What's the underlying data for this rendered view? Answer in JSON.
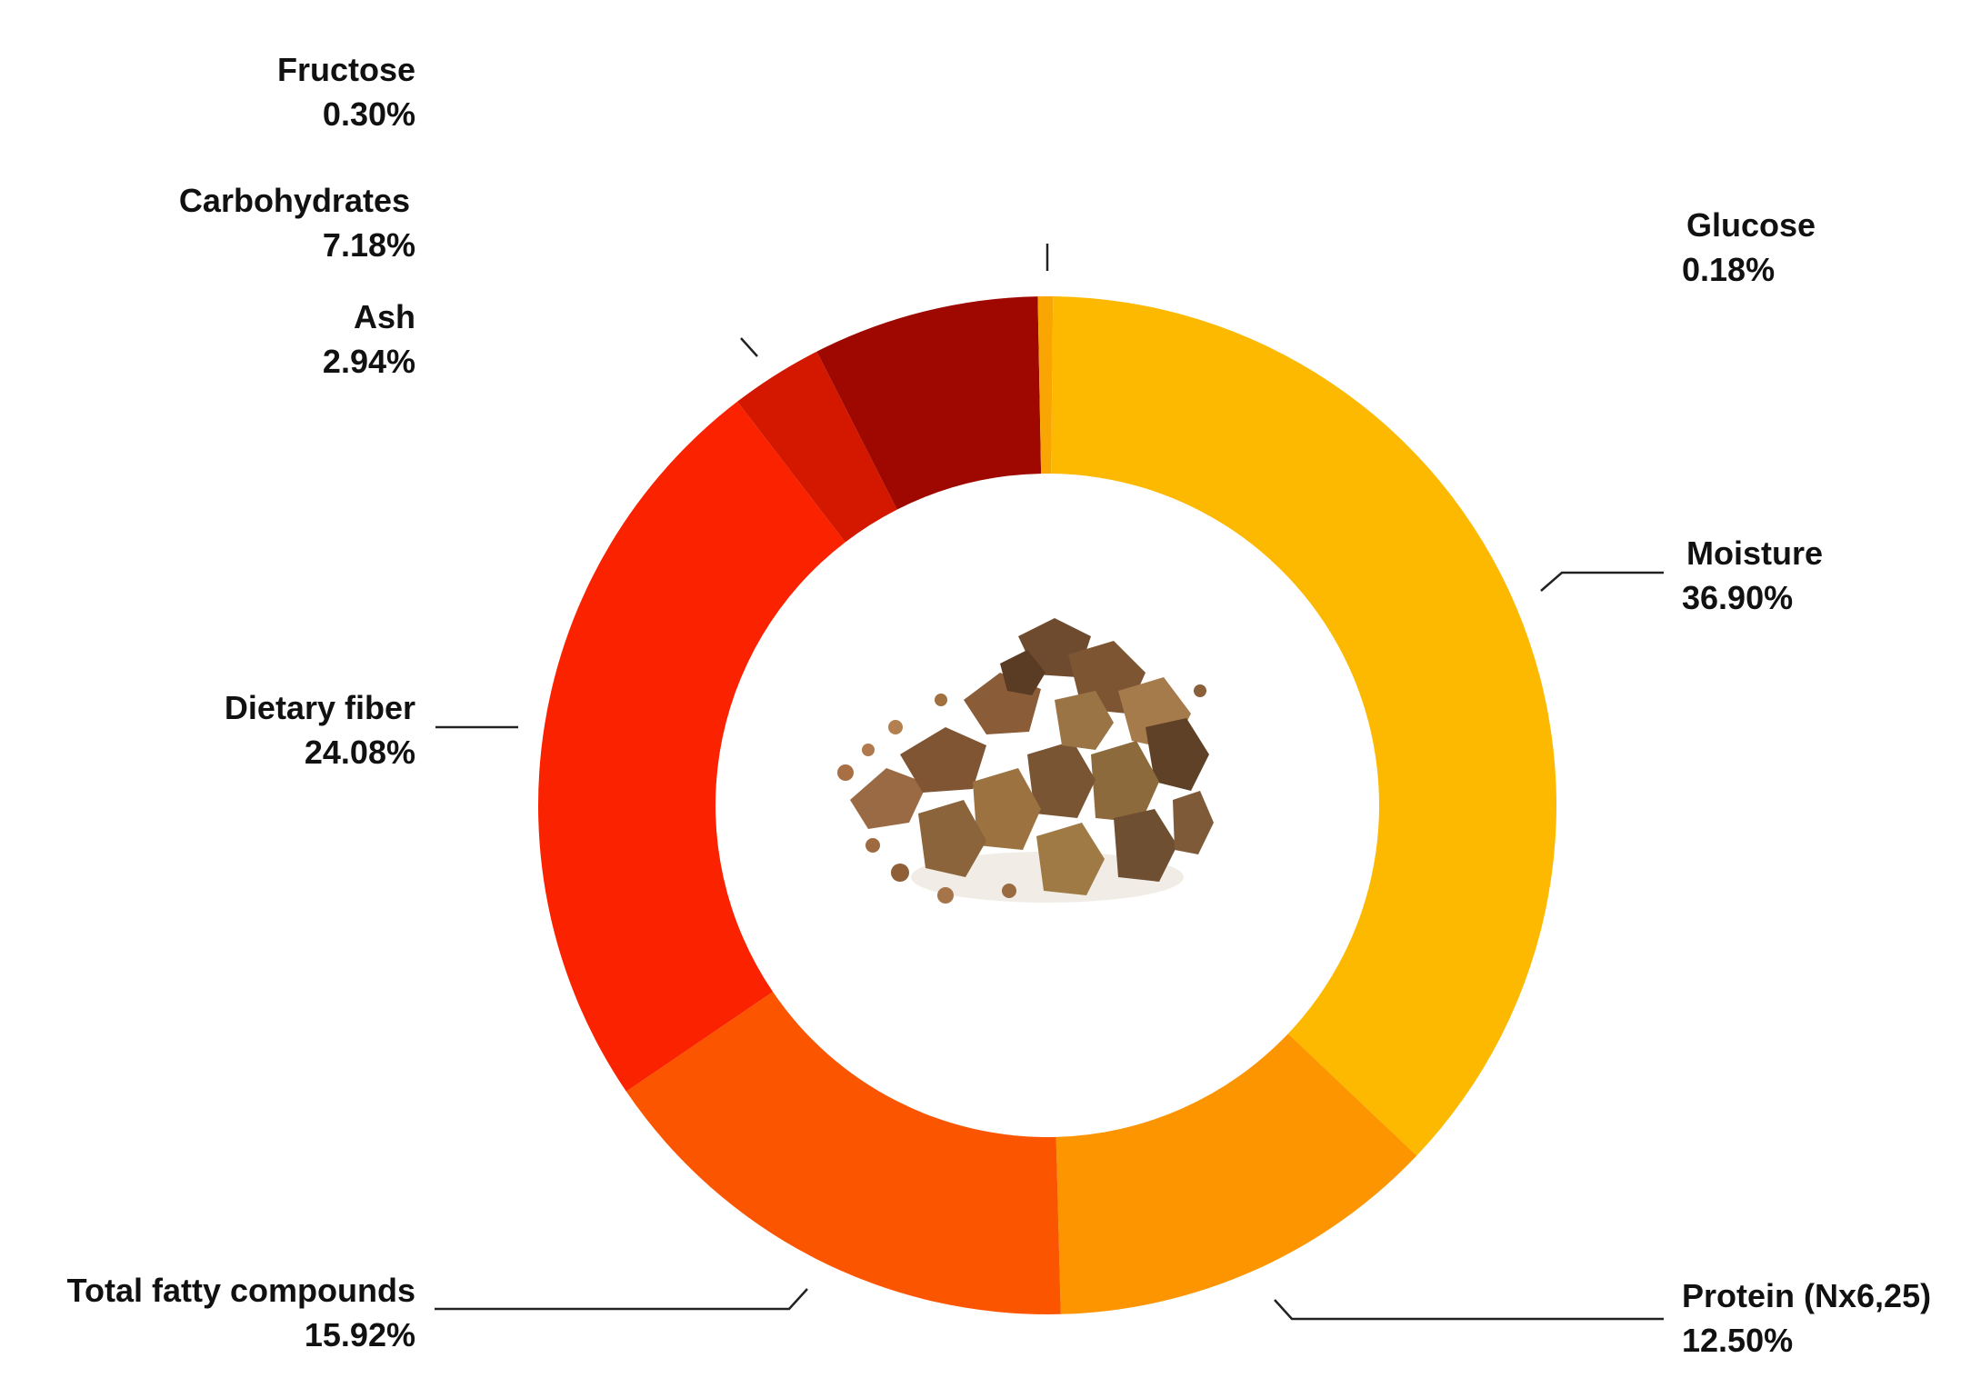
{
  "chart_data": {
    "type": "pie",
    "variant": "donut",
    "title": "",
    "slices": [
      {
        "label": "Glucose",
        "value": 0.18,
        "display": "0.18%",
        "color": "#F9A602"
      },
      {
        "label": "Moisture",
        "value": 36.9,
        "display": "36.90%",
        "color": "#FDB900"
      },
      {
        "label": "Protein (Nx6,25)",
        "value": 12.5,
        "display": "12.50%",
        "color": "#FC9500"
      },
      {
        "label": "Total fatty compounds",
        "value": 15.92,
        "display": "15.92%",
        "color": "#FC5500"
      },
      {
        "label": "Dietary fiber",
        "value": 24.08,
        "display": "24.08%",
        "color": "#FB2200"
      },
      {
        "label": "Ash",
        "value": 2.94,
        "display": "2.94%",
        "color": "#D41800"
      },
      {
        "label": "Carbohydrates",
        "value": 7.18,
        "display": "7.18%",
        "color": "#9E0800"
      },
      {
        "label": "Fructose",
        "value": 0.3,
        "display": "0.30%",
        "color": "#F9A602"
      }
    ],
    "center_image": "pile-of-crumbled-brown-mushroom-chunks"
  }
}
